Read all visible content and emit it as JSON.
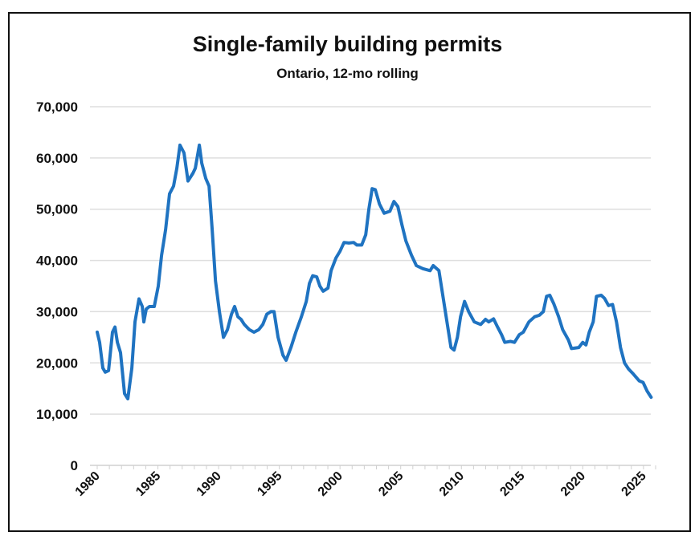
{
  "chart_data": {
    "type": "line",
    "title": "Single-family building permits",
    "subtitle": "Ontario, 12-mo rolling",
    "xlabel": "",
    "ylabel": "",
    "xlim": [
      1980,
      2026
    ],
    "ylim": [
      0,
      70000
    ],
    "grid": true,
    "legend": "none",
    "y_ticks": [
      0,
      10000,
      20000,
      30000,
      40000,
      50000,
      60000,
      70000
    ],
    "y_tick_labels": [
      "0",
      "10,000",
      "20,000",
      "30,000",
      "40,000",
      "50,000",
      "60,000",
      "70,000"
    ],
    "x_ticks": [
      1980,
      1985,
      1990,
      1995,
      2000,
      2005,
      2010,
      2015,
      2020,
      2025
    ],
    "x_tick_labels": [
      "1980",
      "1985",
      "1990",
      "1995",
      "2000",
      "2005",
      "2010",
      "2015",
      "2020",
      "2025"
    ],
    "series": [
      {
        "name": "Single-family building permits",
        "color": "#1f73c1",
        "x": [
          1980.0,
          1980.2,
          1980.46,
          1980.66,
          1980.93,
          1981.26,
          1981.46,
          1981.66,
          1981.92,
          1982.25,
          1982.52,
          1982.85,
          1983.11,
          1983.44,
          1983.71,
          1983.84,
          1984.04,
          1984.3,
          1984.7,
          1985.03,
          1985.3,
          1985.63,
          1985.96,
          1986.29,
          1986.56,
          1986.82,
          1987.15,
          1987.48,
          1987.88,
          1988.08,
          1988.41,
          1988.61,
          1988.94,
          1989.21,
          1989.47,
          1989.74,
          1990.07,
          1990.4,
          1990.73,
          1991.06,
          1991.32,
          1991.59,
          1991.85,
          1992.12,
          1992.52,
          1992.91,
          1993.31,
          1993.64,
          1993.97,
          1994.3,
          1994.57,
          1994.9,
          1995.3,
          1995.56,
          1995.96,
          1996.36,
          1996.82,
          1997.22,
          1997.48,
          1997.75,
          1998.08,
          1998.34,
          1998.61,
          1999.01,
          1999.27,
          1999.67,
          2000.0,
          2000.33,
          2000.73,
          2001.13,
          2001.39,
          2001.79,
          2002.12,
          2002.38,
          2002.65,
          2002.91,
          2003.25,
          2003.64,
          2004.11,
          2004.44,
          2004.77,
          2005.1,
          2005.43,
          2005.89,
          2006.29,
          2006.82,
          2007.42,
          2007.68,
          2008.15,
          2008.48,
          2008.81,
          2009.14,
          2009.4,
          2009.67,
          2009.93,
          2010.26,
          2010.6,
          2011.06,
          2011.59,
          2011.99,
          2012.25,
          2012.65,
          2012.98,
          2013.31,
          2013.58,
          2014.04,
          2014.37,
          2014.77,
          2015.1,
          2015.56,
          2016.03,
          2016.42,
          2016.75,
          2017.02,
          2017.28,
          2017.62,
          2018.01,
          2018.34,
          2018.81,
          2019.07,
          2019.67,
          2020.0,
          2020.26,
          2020.53,
          2020.86,
          2021.13,
          2021.52,
          2021.79,
          2022.12,
          2022.45,
          2022.78,
          2023.11,
          2023.44,
          2023.77,
          2024.17,
          2024.64,
          2024.97,
          2025.3,
          2025.63
        ],
        "y": [
          26000,
          24000,
          19000,
          18200,
          18500,
          26000,
          27000,
          24000,
          22000,
          14000,
          13000,
          19000,
          28000,
          32500,
          31000,
          28000,
          30500,
          31000,
          31000,
          35000,
          41000,
          46000,
          53000,
          54500,
          58000,
          62500,
          61000,
          55500,
          57000,
          58000,
          62500,
          59000,
          56000,
          54500,
          46000,
          36000,
          30000,
          25000,
          26500,
          29500,
          31000,
          29000,
          28500,
          27500,
          26500,
          26000,
          26500,
          27500,
          29500,
          30000,
          30000,
          25000,
          21500,
          20500,
          23000,
          26000,
          29000,
          32000,
          35500,
          37000,
          36800,
          35000,
          34000,
          34600,
          38000,
          40500,
          41800,
          43500,
          43400,
          43500,
          43000,
          43000,
          45000,
          50000,
          54000,
          53800,
          51000,
          49200,
          49600,
          51500,
          50500,
          47000,
          43800,
          41000,
          39000,
          38400,
          38000,
          39000,
          38000,
          33000,
          28000,
          23000,
          22500,
          25000,
          29000,
          32000,
          30000,
          28000,
          27500,
          28500,
          28000,
          28600,
          27000,
          25500,
          24000,
          24200,
          24000,
          25500,
          26000,
          28000,
          29000,
          29300,
          30000,
          33000,
          33200,
          31500,
          29000,
          26500,
          24500,
          22800,
          23000,
          24000,
          23500,
          26000,
          28000,
          33000,
          33200,
          32600,
          31200,
          31400,
          28000,
          23000,
          20000,
          18800,
          17800,
          16500,
          16200,
          14500,
          13300
        ]
      }
    ]
  }
}
